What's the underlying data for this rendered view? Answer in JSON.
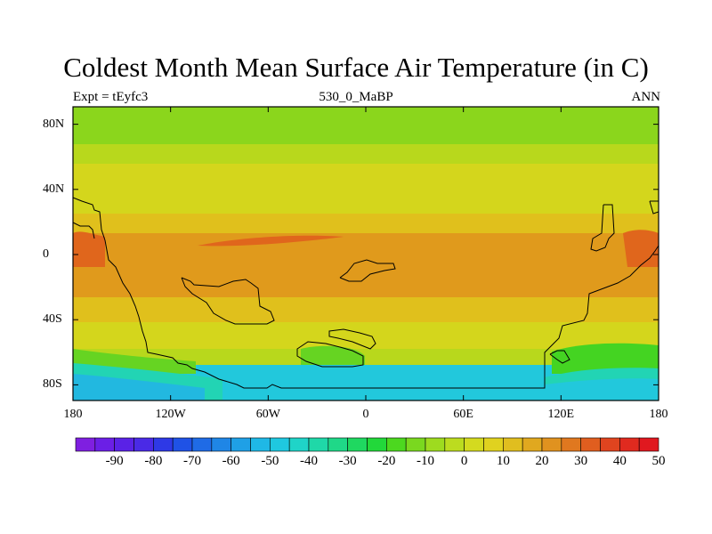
{
  "title": "Coldest Month Mean Surface Air Temperature (in C)",
  "subtitle_left": "Expt = tEyfc3",
  "subtitle_center": "530_0_MaBP",
  "subtitle_right": "ANN",
  "lat_ticks": [
    {
      "value": 80,
      "label": "80N"
    },
    {
      "value": 40,
      "label": "40N"
    },
    {
      "value": 0,
      "label": "0"
    },
    {
      "value": -40,
      "label": "40S"
    },
    {
      "value": -80,
      "label": "80S"
    }
  ],
  "lon_ticks": [
    {
      "value": -180,
      "label": "180"
    },
    {
      "value": -120,
      "label": "120W"
    },
    {
      "value": -60,
      "label": "60W"
    },
    {
      "value": 0,
      "label": "0"
    },
    {
      "value": 60,
      "label": "60E"
    },
    {
      "value": 120,
      "label": "120E"
    },
    {
      "value": 180,
      "label": "180"
    }
  ],
  "colorbar": {
    "colors": [
      "#7f1fe0",
      "#6b1fe6",
      "#5a22e6",
      "#4a2ae6",
      "#2e39e6",
      "#1f52e6",
      "#1f6be6",
      "#1f86e6",
      "#1fa0e6",
      "#1fb8e6",
      "#1fc8e0",
      "#1fd4c8",
      "#1fd8a8",
      "#1fd888",
      "#1fd860",
      "#22d83a",
      "#4cd81f",
      "#7ad81f",
      "#9edb1f",
      "#bcdc1f",
      "#d4da1f",
      "#e0d21f",
      "#e0be1f",
      "#e0a81f",
      "#e0921f",
      "#e0781f",
      "#e05e1f",
      "#e0441f",
      "#e02a1f",
      "#e0181f"
    ],
    "labels": [
      {
        "value": -90,
        "label": "-90"
      },
      {
        "value": -80,
        "label": "-80"
      },
      {
        "value": -70,
        "label": "-70"
      },
      {
        "value": -60,
        "label": "-60"
      },
      {
        "value": -50,
        "label": "-50"
      },
      {
        "value": -40,
        "label": "-40"
      },
      {
        "value": -30,
        "label": "-30"
      },
      {
        "value": -20,
        "label": "-20"
      },
      {
        "value": -10,
        "label": "-10"
      },
      {
        "value": 0,
        "label": "0"
      },
      {
        "value": 10,
        "label": "10"
      },
      {
        "value": 20,
        "label": "20"
      },
      {
        "value": 30,
        "label": "30"
      },
      {
        "value": 40,
        "label": "40"
      },
      {
        "value": 50,
        "label": "50"
      }
    ]
  },
  "palette": {
    "green": "#8bd61c",
    "yellow_green": "#b8d81c",
    "yellow": "#d4d61c",
    "gold": "#e0c01c",
    "orange": "#e09a1c",
    "dark_orange": "#e0861c",
    "red_orange": "#e0661c",
    "cyan": "#22c8dc",
    "teal": "#22d4b4",
    "light_blue": "#22b8e0",
    "mid_green": "#44d422",
    "bright_green": "#66d422"
  }
}
